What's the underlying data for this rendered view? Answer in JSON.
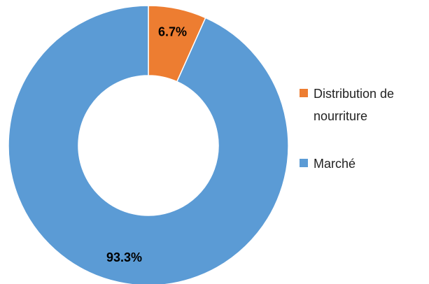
{
  "chart_data": {
    "type": "donut",
    "categories": [
      "Distribution de nourriture",
      "Marché"
    ],
    "values": [
      6.7,
      93.3
    ],
    "value_labels": [
      "6.7%",
      "93.3%"
    ],
    "colors": [
      "#ed7d31",
      "#5b9bd5"
    ],
    "legend": "right"
  }
}
